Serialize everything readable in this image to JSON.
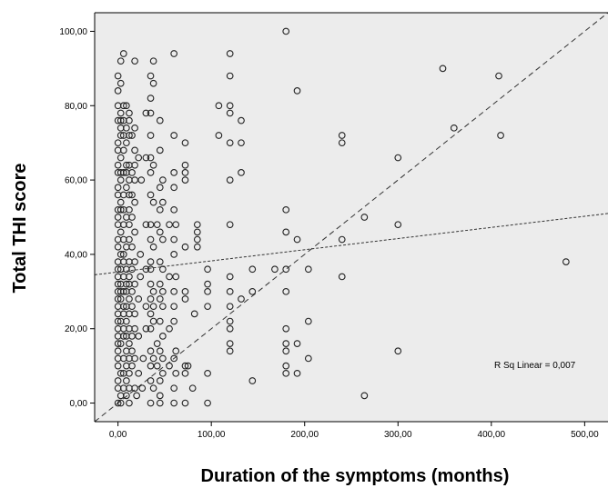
{
  "chart_data": {
    "type": "scatter",
    "title": "",
    "xlabel": "Duration of the symptoms (months)",
    "ylabel": "Total THI score",
    "xlim": [
      -25,
      525
    ],
    "ylim": [
      -5,
      105
    ],
    "x_ticks": [
      0,
      100,
      200,
      300,
      400,
      500
    ],
    "x_tick_labels": [
      "0,00",
      "100,00",
      "200,00",
      "300,00",
      "400,00",
      "500,00"
    ],
    "y_ticks": [
      0,
      20,
      40,
      60,
      80,
      100
    ],
    "y_tick_labels": [
      "0,00",
      "20,00",
      "40,00",
      "60,00",
      "80,00",
      "100,00"
    ],
    "grid": false,
    "background": "#ececec",
    "annotation": "R Sq Linear = 0,007",
    "lines": [
      {
        "style": "dashed",
        "x": [
          -25,
          525
        ],
        "y": [
          -5,
          105
        ]
      },
      {
        "style": "dashed-fit",
        "x": [
          -25,
          525
        ],
        "y": [
          34.5,
          51
        ]
      }
    ],
    "points": [
      [
        0,
        0
      ],
      [
        0,
        4
      ],
      [
        0,
        6
      ],
      [
        0,
        10
      ],
      [
        0,
        12
      ],
      [
        0,
        14
      ],
      [
        0,
        16
      ],
      [
        0,
        18
      ],
      [
        0,
        20
      ],
      [
        0,
        22
      ],
      [
        0,
        24
      ],
      [
        0,
        26
      ],
      [
        0,
        28
      ],
      [
        0,
        30
      ],
      [
        0,
        32
      ],
      [
        0,
        34
      ],
      [
        0,
        36
      ],
      [
        0,
        38
      ],
      [
        0,
        42
      ],
      [
        0,
        44
      ],
      [
        0,
        48
      ],
      [
        0,
        50
      ],
      [
        0,
        52
      ],
      [
        0,
        56
      ],
      [
        0,
        58
      ],
      [
        0,
        62
      ],
      [
        0,
        64
      ],
      [
        0,
        68
      ],
      [
        0,
        70
      ],
      [
        0,
        76
      ],
      [
        0,
        80
      ],
      [
        0,
        84
      ],
      [
        0,
        88
      ],
      [
        3,
        0
      ],
      [
        3,
        2
      ],
      [
        3,
        8
      ],
      [
        3,
        16
      ],
      [
        3,
        22
      ],
      [
        3,
        28
      ],
      [
        3,
        30
      ],
      [
        3,
        32
      ],
      [
        3,
        36
      ],
      [
        3,
        40
      ],
      [
        3,
        46
      ],
      [
        3,
        52
      ],
      [
        3,
        54
      ],
      [
        3,
        60
      ],
      [
        3,
        62
      ],
      [
        3,
        66
      ],
      [
        3,
        72
      ],
      [
        3,
        74
      ],
      [
        3,
        76
      ],
      [
        3,
        78
      ],
      [
        3,
        86
      ],
      [
        3,
        92
      ],
      [
        6,
        4
      ],
      [
        6,
        8
      ],
      [
        6,
        12
      ],
      [
        6,
        18
      ],
      [
        6,
        20
      ],
      [
        6,
        24
      ],
      [
        6,
        26
      ],
      [
        6,
        30
      ],
      [
        6,
        34
      ],
      [
        6,
        38
      ],
      [
        6,
        40
      ],
      [
        6,
        44
      ],
      [
        6,
        48
      ],
      [
        6,
        52
      ],
      [
        6,
        56
      ],
      [
        6,
        62
      ],
      [
        6,
        68
      ],
      [
        6,
        72
      ],
      [
        6,
        76
      ],
      [
        6,
        80
      ],
      [
        6,
        94
      ],
      [
        9,
        2
      ],
      [
        9,
        6
      ],
      [
        9,
        10
      ],
      [
        9,
        14
      ],
      [
        9,
        18
      ],
      [
        9,
        22
      ],
      [
        9,
        26
      ],
      [
        9,
        30
      ],
      [
        9,
        32
      ],
      [
        9,
        36
      ],
      [
        9,
        42
      ],
      [
        9,
        50
      ],
      [
        9,
        58
      ],
      [
        9,
        62
      ],
      [
        9,
        64
      ],
      [
        9,
        70
      ],
      [
        9,
        74
      ],
      [
        9,
        80
      ],
      [
        12,
        0
      ],
      [
        12,
        4
      ],
      [
        12,
        8
      ],
      [
        12,
        12
      ],
      [
        12,
        16
      ],
      [
        12,
        20
      ],
      [
        12,
        24
      ],
      [
        12,
        28
      ],
      [
        12,
        32
      ],
      [
        12,
        34
      ],
      [
        12,
        38
      ],
      [
        12,
        44
      ],
      [
        12,
        48
      ],
      [
        12,
        52
      ],
      [
        12,
        56
      ],
      [
        12,
        60
      ],
      [
        12,
        64
      ],
      [
        12,
        72
      ],
      [
        12,
        76
      ],
      [
        12,
        78
      ],
      [
        15,
        10
      ],
      [
        15,
        14
      ],
      [
        15,
        18
      ],
      [
        15,
        26
      ],
      [
        15,
        30
      ],
      [
        15,
        36
      ],
      [
        15,
        42
      ],
      [
        15,
        50
      ],
      [
        15,
        56
      ],
      [
        15,
        62
      ],
      [
        15,
        72
      ],
      [
        18,
        4
      ],
      [
        18,
        12
      ],
      [
        18,
        20
      ],
      [
        18,
        24
      ],
      [
        18,
        32
      ],
      [
        18,
        38
      ],
      [
        18,
        46
      ],
      [
        18,
        54
      ],
      [
        18,
        60
      ],
      [
        18,
        64
      ],
      [
        18,
        68
      ],
      [
        18,
        74
      ],
      [
        18,
        92
      ],
      [
        20,
        2
      ],
      [
        22,
        8
      ],
      [
        22,
        18
      ],
      [
        22,
        28
      ],
      [
        22,
        66
      ],
      [
        24,
        34
      ],
      [
        24,
        40
      ],
      [
        25,
        60
      ],
      [
        26,
        4
      ],
      [
        27,
        12
      ],
      [
        30,
        20
      ],
      [
        30,
        26
      ],
      [
        30,
        36
      ],
      [
        30,
        48
      ],
      [
        30,
        66
      ],
      [
        30,
        78
      ],
      [
        35,
        0
      ],
      [
        35,
        6
      ],
      [
        35,
        10
      ],
      [
        35,
        14
      ],
      [
        35,
        20
      ],
      [
        35,
        24
      ],
      [
        35,
        28
      ],
      [
        35,
        32
      ],
      [
        35,
        36
      ],
      [
        35,
        38
      ],
      [
        35,
        44
      ],
      [
        35,
        48
      ],
      [
        35,
        56
      ],
      [
        35,
        62
      ],
      [
        35,
        66
      ],
      [
        35,
        72
      ],
      [
        35,
        78
      ],
      [
        35,
        82
      ],
      [
        35,
        88
      ],
      [
        38,
        4
      ],
      [
        38,
        12
      ],
      [
        38,
        22
      ],
      [
        38,
        26
      ],
      [
        38,
        30
      ],
      [
        38,
        42
      ],
      [
        38,
        54
      ],
      [
        38,
        64
      ],
      [
        38,
        86
      ],
      [
        38,
        92
      ],
      [
        42,
        10
      ],
      [
        42,
        16
      ],
      [
        42,
        48
      ],
      [
        45,
        0
      ],
      [
        45,
        2
      ],
      [
        45,
        6
      ],
      [
        45,
        14
      ],
      [
        45,
        22
      ],
      [
        45,
        28
      ],
      [
        45,
        32
      ],
      [
        45,
        38
      ],
      [
        45,
        46
      ],
      [
        45,
        52
      ],
      [
        45,
        58
      ],
      [
        45,
        68
      ],
      [
        45,
        76
      ],
      [
        48,
        8
      ],
      [
        48,
        12
      ],
      [
        48,
        18
      ],
      [
        48,
        26
      ],
      [
        48,
        30
      ],
      [
        48,
        36
      ],
      [
        48,
        44
      ],
      [
        48,
        54
      ],
      [
        48,
        60
      ],
      [
        55,
        10
      ],
      [
        55,
        20
      ],
      [
        55,
        34
      ],
      [
        55,
        48
      ],
      [
        60,
        0
      ],
      [
        60,
        4
      ],
      [
        60,
        12
      ],
      [
        60,
        22
      ],
      [
        60,
        26
      ],
      [
        60,
        30
      ],
      [
        60,
        40
      ],
      [
        60,
        44
      ],
      [
        60,
        52
      ],
      [
        60,
        58
      ],
      [
        60,
        62
      ],
      [
        60,
        72
      ],
      [
        60,
        94
      ],
      [
        62,
        8
      ],
      [
        62,
        14
      ],
      [
        62,
        34
      ],
      [
        62,
        48
      ],
      [
        72,
        0
      ],
      [
        72,
        8
      ],
      [
        72,
        10
      ],
      [
        72,
        28
      ],
      [
        72,
        30
      ],
      [
        72,
        42
      ],
      [
        72,
        60
      ],
      [
        72,
        62
      ],
      [
        72,
        64
      ],
      [
        72,
        70
      ],
      [
        75,
        10
      ],
      [
        80,
        4
      ],
      [
        82,
        24
      ],
      [
        85,
        42
      ],
      [
        85,
        44
      ],
      [
        85,
        46
      ],
      [
        85,
        48
      ],
      [
        96,
        0
      ],
      [
        96,
        8
      ],
      [
        96,
        26
      ],
      [
        96,
        30
      ],
      [
        96,
        32
      ],
      [
        96,
        36
      ],
      [
        108,
        72
      ],
      [
        108,
        80
      ],
      [
        120,
        14
      ],
      [
        120,
        16
      ],
      [
        120,
        20
      ],
      [
        120,
        22
      ],
      [
        120,
        26
      ],
      [
        120,
        30
      ],
      [
        120,
        34
      ],
      [
        120,
        48
      ],
      [
        120,
        60
      ],
      [
        120,
        70
      ],
      [
        120,
        78
      ],
      [
        120,
        80
      ],
      [
        120,
        88
      ],
      [
        120,
        94
      ],
      [
        132,
        28
      ],
      [
        132,
        62
      ],
      [
        132,
        70
      ],
      [
        132,
        76
      ],
      [
        144,
        6
      ],
      [
        144,
        30
      ],
      [
        144,
        36
      ],
      [
        168,
        36
      ],
      [
        180,
        8
      ],
      [
        180,
        10
      ],
      [
        180,
        14
      ],
      [
        180,
        16
      ],
      [
        180,
        20
      ],
      [
        180,
        30
      ],
      [
        180,
        36
      ],
      [
        180,
        46
      ],
      [
        180,
        52
      ],
      [
        180,
        100
      ],
      [
        192,
        8
      ],
      [
        192,
        16
      ],
      [
        192,
        44
      ],
      [
        192,
        84
      ],
      [
        204,
        12
      ],
      [
        204,
        22
      ],
      [
        204,
        36
      ],
      [
        240,
        34
      ],
      [
        240,
        44
      ],
      [
        240,
        70
      ],
      [
        240,
        72
      ],
      [
        264,
        2
      ],
      [
        264,
        50
      ],
      [
        300,
        14
      ],
      [
        300,
        48
      ],
      [
        300,
        66
      ],
      [
        348,
        90
      ],
      [
        360,
        74
      ],
      [
        408,
        88
      ],
      [
        410,
        72
      ],
      [
        480,
        38
      ]
    ]
  }
}
